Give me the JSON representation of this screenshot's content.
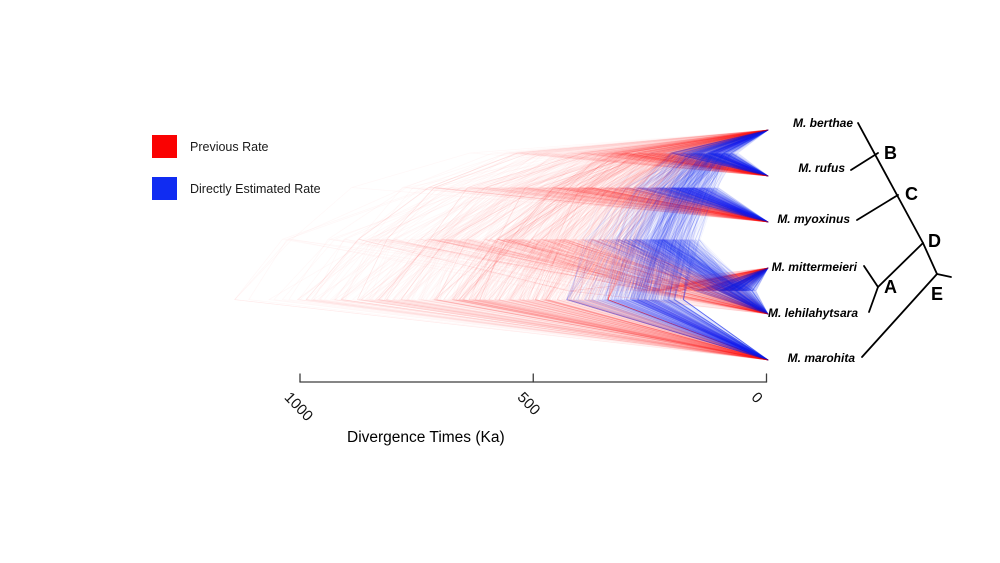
{
  "figure": {
    "kind": "densitree cloudogram of Microcebus divergence-time posteriors",
    "background_color": "#FFFFFF"
  },
  "legend": {
    "items": [
      {
        "label": "Previous Rate",
        "color": "#FA0202"
      },
      {
        "label": "Directly Estimated Rate",
        "color": "#102CF2"
      }
    ]
  },
  "axis": {
    "label": "Divergence Times (Ka)",
    "ticks": [
      "1000",
      "500",
      "0"
    ],
    "line_color": "#3D3D3D"
  },
  "cladogram": {
    "line_color": "#000000",
    "node_display_order": [
      "B",
      "C",
      "D",
      "A",
      "E"
    ]
  },
  "chart_data": {
    "type": "densitree",
    "title": "",
    "xlabel": "Divergence Times (Ka)",
    "x_ticks_ka": [
      1000,
      500,
      0
    ],
    "x_axis_direction": "older-to-left, present (0 Ka) at right",
    "taxa": [
      "M. berthae",
      "M. rufus",
      "M. myoxinus",
      "M. mittermeieri",
      "M. lehilahytsara",
      "M. marohita"
    ],
    "clade_node_labels": [
      "A",
      "B",
      "C",
      "D",
      "E"
    ],
    "topology_newick": "((((M. berthae,M. rufus)B,M. myoxinus)C,(M. mittermeieri,M. lehilahytsara)A)D,M. marohita)E;",
    "series": [
      {
        "name": "Previous Rate",
        "color": "#FA0202",
        "node_age_modes_ka": {
          "B": 240,
          "C": 350,
          "D": 480,
          "A": 130,
          "E_root": 560
        },
        "root_age_range_ka": [
          340,
          1140
        ],
        "root_age_lognormal_sigma": 0.3
      },
      {
        "name": "Directly Estimated Rate",
        "color": "#102CF2",
        "node_age_modes_ka": {
          "B": 110,
          "C": 165,
          "D": 230,
          "A": 60,
          "E_root": 272
        },
        "root_age_range_ka": [
          178,
          428
        ],
        "root_age_lognormal_sigma": 0.21
      }
    ],
    "legend_position": "upper-left",
    "grid": false
  }
}
